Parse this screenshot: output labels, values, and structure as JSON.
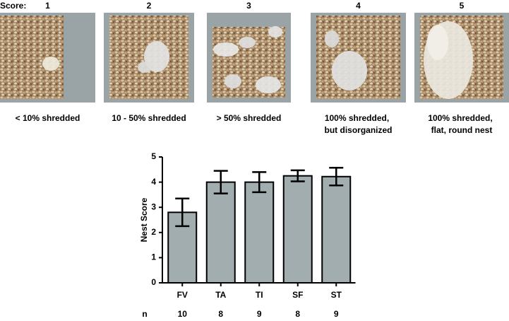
{
  "header": "Score:",
  "panels": [
    {
      "score": 1,
      "caption": [
        "< 10% shredded"
      ]
    },
    {
      "score": 2,
      "caption": [
        "10 - 50% shredded"
      ]
    },
    {
      "score": 3,
      "caption": [
        "> 50% shredded"
      ]
    },
    {
      "score": 4,
      "caption": [
        "100% shredded,",
        "but disorganized"
      ]
    },
    {
      "score": 5,
      "caption": [
        "100% shredded,",
        "flat, round nest"
      ]
    }
  ],
  "chart_data": {
    "type": "bar",
    "ylabel": "Nest Score",
    "categories": [
      "FV",
      "TA",
      "TI",
      "SF",
      "ST"
    ],
    "values": [
      2.8,
      4.0,
      4.0,
      4.25,
      4.22
    ],
    "errors": [
      0.55,
      0.45,
      0.4,
      0.22,
      0.35
    ],
    "color": "#a2adb0",
    "ylim": [
      0,
      5
    ],
    "yticks": [
      0,
      1,
      2,
      3,
      4,
      5
    ],
    "n_label": "n",
    "n_values": [
      10,
      8,
      9,
      8,
      9
    ]
  }
}
